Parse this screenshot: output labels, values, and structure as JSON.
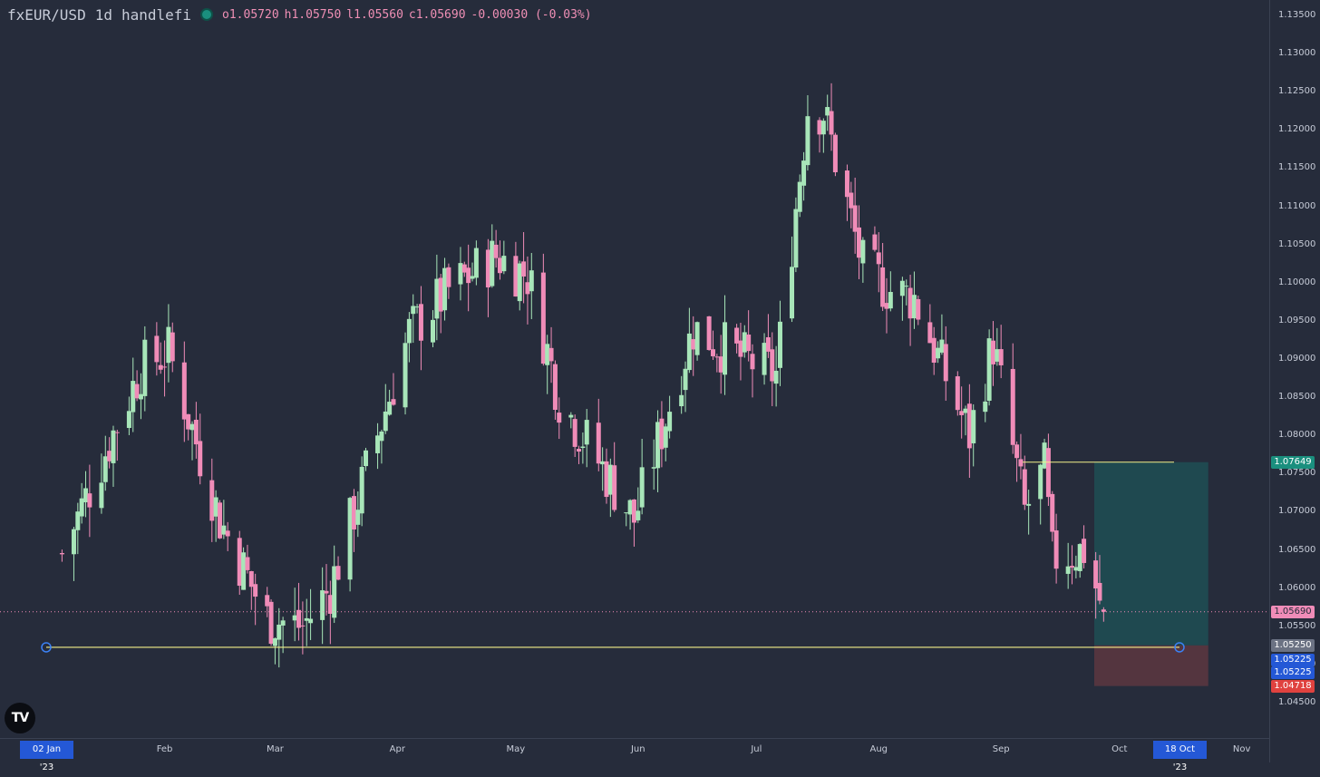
{
  "header": {
    "symbol": "fxEUR/USD",
    "interval": "1d",
    "author": "handlefi",
    "open": "o1.05720",
    "high": "h1.05750",
    "low": "l1.05560",
    "close": "c1.05690",
    "change": "-0.00030 (-0.03%)"
  },
  "price_axis": {
    "ticks": [
      "1.13500",
      "1.13000",
      "1.12500",
      "1.12000",
      "1.11500",
      "1.11000",
      "1.10500",
      "1.10000",
      "1.09500",
      "1.09000",
      "1.08500",
      "1.08000",
      "1.07500",
      "1.07000",
      "1.06500",
      "1.06000",
      "1.05500",
      "1.05000",
      "1.04500"
    ]
  },
  "price_labels": {
    "target": "1.07649",
    "current": "1.05690",
    "entry": "1.05250",
    "line_a": "1.05225",
    "line_b": "1.05225",
    "stop": "1.04718"
  },
  "time_axis": {
    "start_label": "02 Jan '23",
    "months": [
      "Feb",
      "Mar",
      "Apr",
      "May",
      "Jun",
      "Jul",
      "Aug",
      "Sep",
      "Oct",
      "Nov"
    ],
    "end_label": "18 Oct '23"
  },
  "logo_text": "TV",
  "colors": {
    "background": "#262c3b",
    "up": "#a8e6b9",
    "down": "#f08cb8",
    "level_line": "#f2f08a",
    "target_zone": "#1f4f55",
    "stop_zone": "#5a3640",
    "highlight": "#2458d6"
  },
  "chart_data": {
    "type": "candlestick",
    "title": "fxEUR/USD 1d",
    "xlabel": "",
    "ylabel": "",
    "ylim": [
      1.0428,
      1.1375
    ],
    "y_log": false,
    "x_range": [
      "2023-01-02",
      "2023-11-05"
    ],
    "grid": false,
    "key_points": [
      {
        "date": "2023-01-06",
        "close": 1.0645
      },
      {
        "date": "2023-01-26",
        "close": 1.0888
      },
      {
        "date": "2023-02-02",
        "close": 1.091
      },
      {
        "date": "2023-02-15",
        "close": 1.069
      },
      {
        "date": "2023-02-27",
        "close": 1.056
      },
      {
        "date": "2023-03-08",
        "close": 1.055
      },
      {
        "date": "2023-03-15",
        "close": 1.06
      },
      {
        "date": "2023-04-04",
        "close": 1.0935
      },
      {
        "date": "2023-04-14",
        "close": 1.099
      },
      {
        "date": "2023-04-26",
        "close": 1.1035
      },
      {
        "date": "2023-05-04",
        "close": 1.101
      },
      {
        "date": "2023-05-12",
        "close": 1.085
      },
      {
        "date": "2023-05-31",
        "close": 1.069
      },
      {
        "date": "2023-06-15",
        "close": 1.094
      },
      {
        "date": "2023-06-26",
        "close": 1.0905
      },
      {
        "date": "2023-07-06",
        "close": 1.088
      },
      {
        "date": "2023-07-14",
        "close": 1.123
      },
      {
        "date": "2023-07-18",
        "close": 1.1225
      },
      {
        "date": "2023-07-28",
        "close": 1.102
      },
      {
        "date": "2023-08-04",
        "close": 1.099
      },
      {
        "date": "2023-08-10",
        "close": 1.098
      },
      {
        "date": "2023-08-24",
        "close": 1.08
      },
      {
        "date": "2023-08-30",
        "close": 1.092
      },
      {
        "date": "2023-09-07",
        "close": 1.07
      },
      {
        "date": "2023-09-12",
        "close": 1.0755
      },
      {
        "date": "2023-09-14",
        "close": 1.064
      },
      {
        "date": "2023-09-22",
        "close": 1.065
      },
      {
        "date": "2023-09-27",
        "close": 1.0569
      }
    ],
    "last_bar": {
      "open": 1.0572,
      "high": 1.0575,
      "low": 1.0556,
      "close": 1.0569
    },
    "horizontal_level": 1.05225,
    "position": {
      "entry": 1.0525,
      "target": 1.07649,
      "stop": 1.04718,
      "end_date": "2023-10-18"
    },
    "target_line": 1.07649
  }
}
